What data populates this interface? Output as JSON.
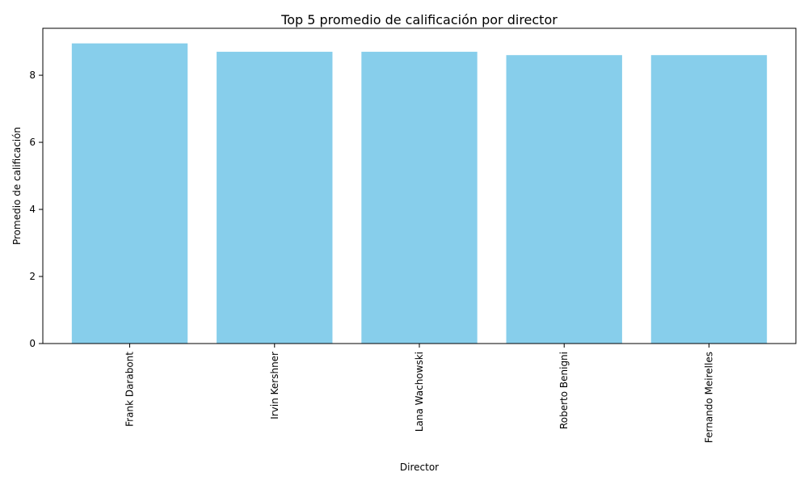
{
  "chart_data": {
    "type": "bar",
    "title": "Top 5 promedio de calificación por director",
    "xlabel": "Director",
    "ylabel": "Promedio de calificación",
    "categories": [
      "Frank Darabont",
      "Irvin Kershner",
      "Lana Wachowski",
      "Roberto Benigni",
      "Fernando Meirelles"
    ],
    "values": [
      8.95,
      8.7,
      8.7,
      8.6,
      8.6
    ],
    "ylim": [
      0,
      9.4
    ],
    "yticks": [
      0,
      2,
      4,
      6,
      8
    ],
    "grid": false,
    "legend": "none",
    "bar_color": "#87CEEB",
    "axis_color": "#000000",
    "background": "#ffffff"
  }
}
